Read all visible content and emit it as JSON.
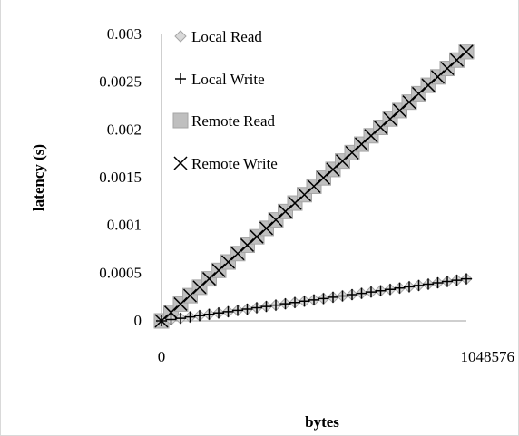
{
  "chart_data": {
    "type": "scatter",
    "xlabel": "bytes",
    "ylabel": "latency (s)",
    "x_ticks": [
      "0",
      "1048576"
    ],
    "y_ticks": [
      "0",
      "0.0005",
      "0.001",
      "0.0015",
      "0.002",
      "0.0025",
      "0.003"
    ],
    "xlim": [
      0,
      1048576
    ],
    "ylim": [
      0,
      0.003
    ],
    "grid": false,
    "legend_position": "top-left",
    "series": [
      {
        "name": "Local Read",
        "marker": "diamond",
        "color": "#a6a6a6",
        "x_start": 0,
        "x_end": 1048576,
        "points": 33,
        "y_start": 0,
        "y_end": 0.00044
      },
      {
        "name": "Local Write",
        "marker": "plus",
        "color": "#000000",
        "x_start": 0,
        "x_end": 1048576,
        "points": 33,
        "y_start": 0,
        "y_end": 0.00044
      },
      {
        "name": "Remote Read",
        "marker": "square",
        "color": "#bfbfbf",
        "x_start": 0,
        "x_end": 1048576,
        "points": 33,
        "y_start": 0,
        "y_end": 0.00282
      },
      {
        "name": "Remote Write",
        "marker": "x",
        "color": "#000000",
        "x_start": 0,
        "x_end": 1048576,
        "points": 33,
        "y_start": 0,
        "y_end": 0.00282
      }
    ]
  }
}
